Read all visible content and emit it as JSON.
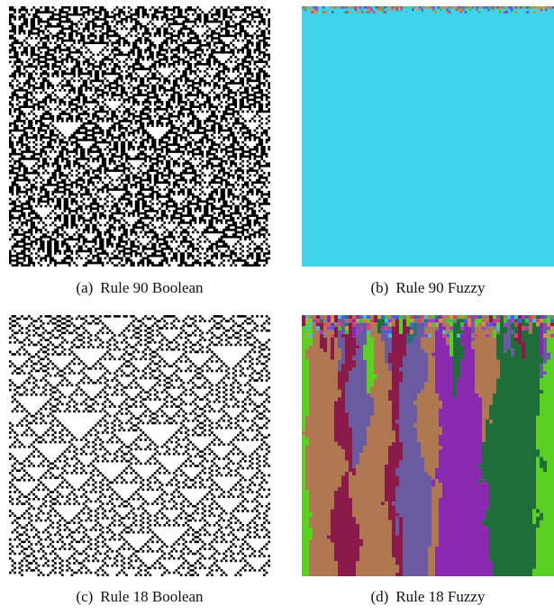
{
  "figure": {
    "panels": [
      {
        "label": "(a)",
        "caption": "Rule 90 Boolean"
      },
      {
        "label": "(b)",
        "caption": "Rule 90 Fuzzy"
      },
      {
        "label": "(c)",
        "caption": "Rule 18 Boolean"
      },
      {
        "label": "(d)",
        "caption": "Rule 18 Fuzzy"
      }
    ]
  }
}
